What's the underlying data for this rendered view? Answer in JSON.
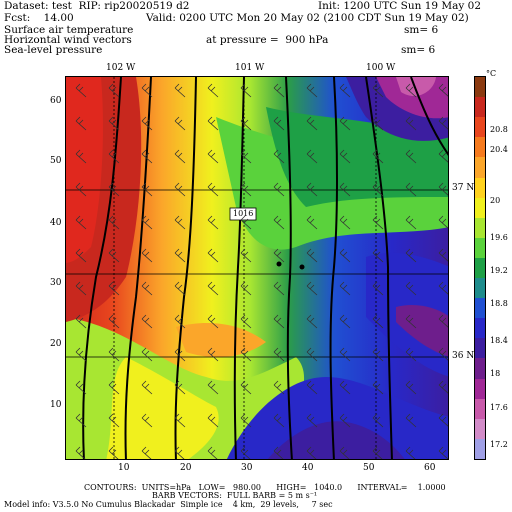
{
  "header": {
    "dataset": "Dataset: test  RIP: rip20020519 d2",
    "init": "Init: 1200 UTC Sun 19 May 02",
    "fcst": "Fcst:    14.00",
    "valid": "Valid: 0200 UTC Mon 20 May 02 (2100 CDT Sun 19 May 02)",
    "field1": "Surface air temperature",
    "sm1": "sm= 6",
    "field2": "Horizontal wind vectors",
    "pressure": "at pressure =  900 hPa",
    "field3": "Sea-level pressure",
    "sm3": "sm= 6"
  },
  "plot": {
    "top_lon_labels": [
      "102 W",
      "101 W",
      "100 W"
    ],
    "right_lat_labels": [
      "37 N",
      "36 N"
    ],
    "x_ticks": [
      "10",
      "20",
      "30",
      "40",
      "50",
      "60"
    ],
    "y_ticks": [
      "60",
      "50",
      "40",
      "30",
      "20",
      "10"
    ],
    "isobar_label": "1016"
  },
  "colorbar": {
    "unit": "°C",
    "labels": [
      "20.8",
      "20.4",
      "20",
      "19.6",
      "19.2",
      "18.8",
      "18.4",
      "18",
      "17.6",
      "17.2"
    ],
    "colors": [
      "#8b3a10",
      "#c8281e",
      "#e8461e",
      "#f57a1e",
      "#fba62a",
      "#ffd21e",
      "#f0f01e",
      "#a8e632",
      "#5ad23c",
      "#1ea046",
      "#1e8c8c",
      "#2050d2",
      "#2828c8",
      "#3c1ea0",
      "#6e1e8c",
      "#a02896",
      "#c85aaa",
      "#d28cc8",
      "#a0a0e6"
    ]
  },
  "footer": {
    "contours": "CONTOURS:  UNITS=hPa   LOW=   980.00      HIGH=   1040.0      INTERVAL=    1.0000",
    "barbs": "BARB VECTORS:  FULL BARB = 5 m s⁻¹",
    "model": "Model info: V3.5.0 No Cumulus Blackadar  Simple ice    4 km,  29 levels,     7 sec"
  }
}
